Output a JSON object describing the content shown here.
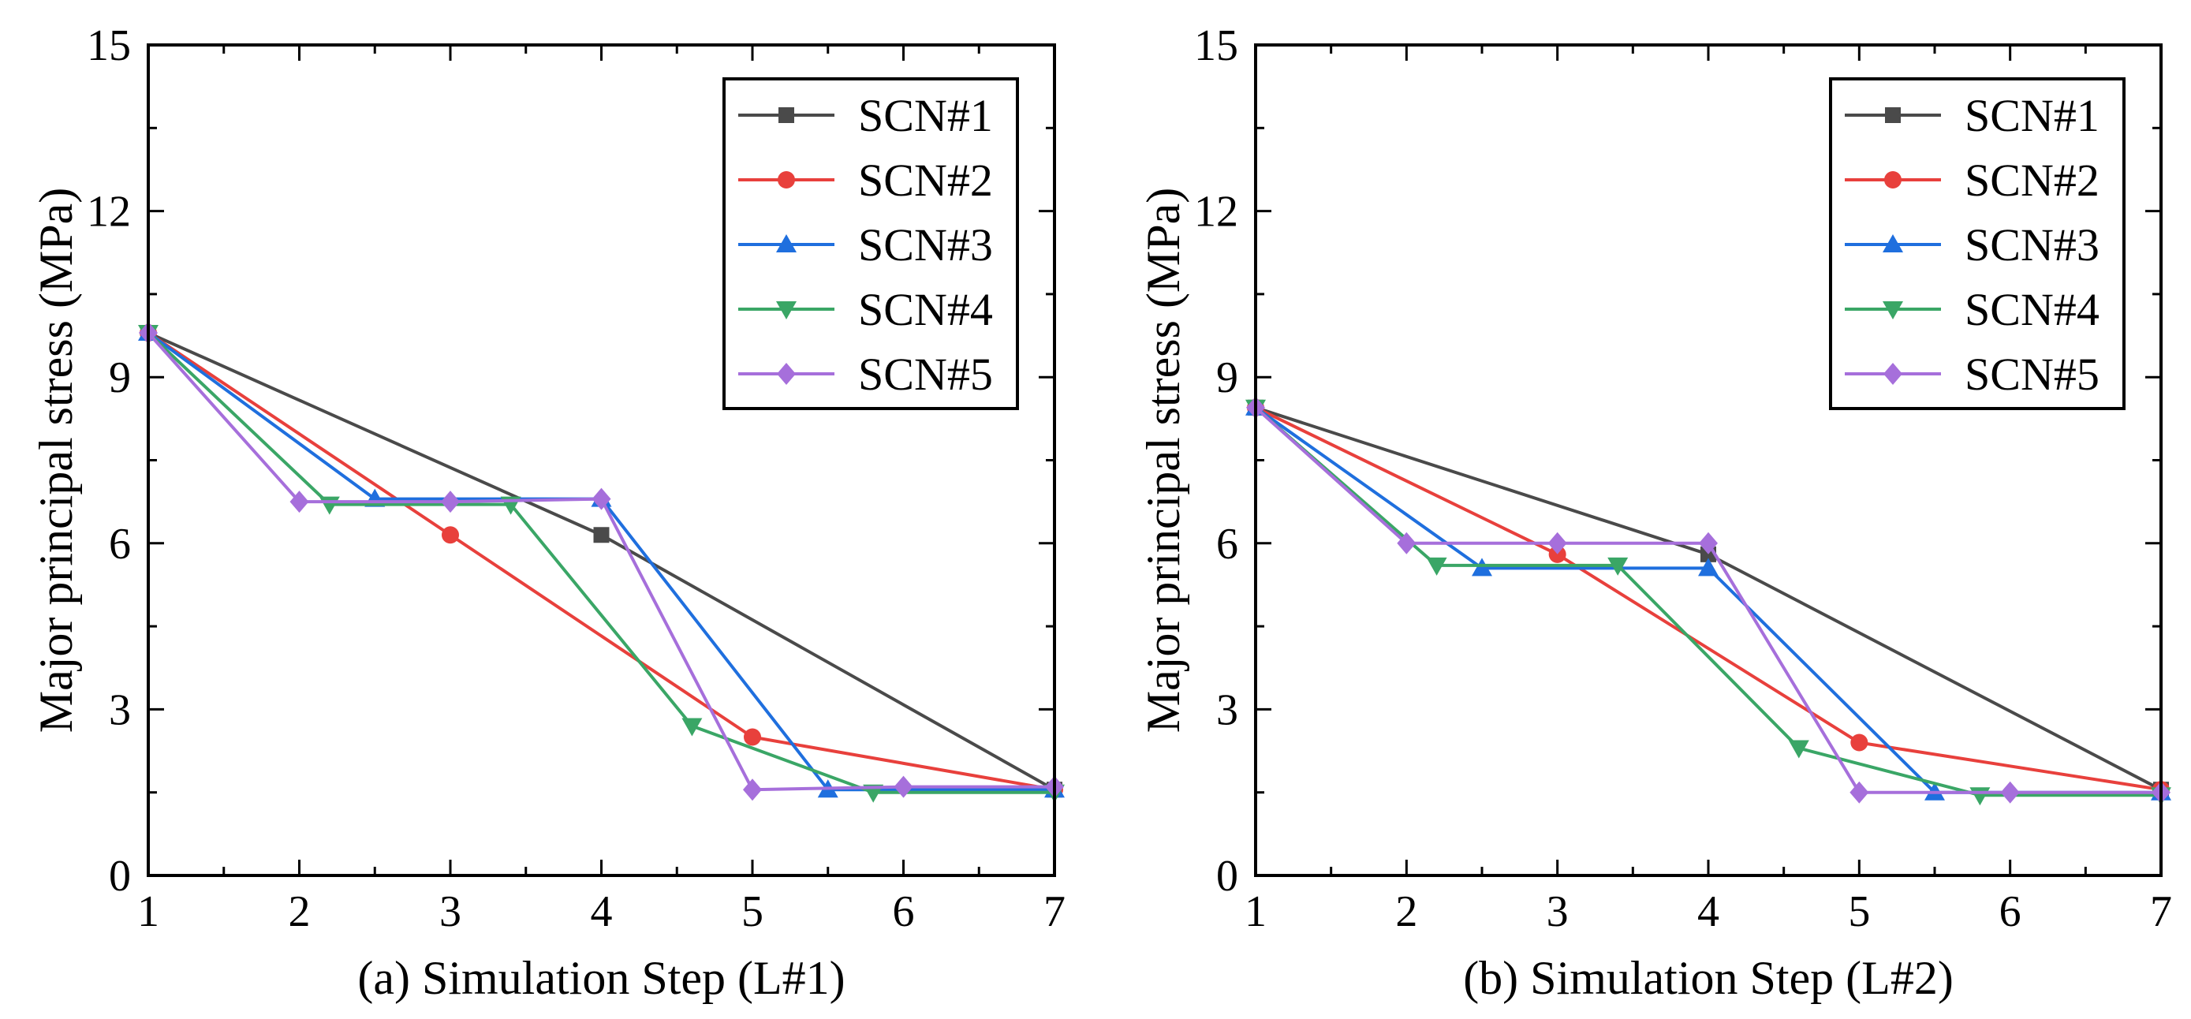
{
  "charts": [
    {
      "id": "a",
      "xlabel": "(a) Simulation Step (L#1)",
      "ylabel": "Major principal stress (MPa)",
      "xlim": [
        1,
        7
      ],
      "ylim": [
        0,
        15
      ],
      "xticks": [
        "1",
        "2",
        "3",
        "4",
        "5",
        "6",
        "7"
      ],
      "yticks": [
        "0",
        "3",
        "6",
        "9",
        "12",
        "15"
      ],
      "legend": [
        "SCN#1",
        "SCN#2",
        "SCN#3",
        "SCN#4",
        "SCN#5"
      ]
    },
    {
      "id": "b",
      "xlabel": "(b) Simulation Step (L#2)",
      "ylabel": "Major principal stress (MPa)",
      "xlim": [
        1,
        7
      ],
      "ylim": [
        0,
        15
      ],
      "xticks": [
        "1",
        "2",
        "3",
        "4",
        "5",
        "6",
        "7"
      ],
      "yticks": [
        "0",
        "3",
        "6",
        "9",
        "12",
        "15"
      ],
      "legend": [
        "SCN#1",
        "SCN#2",
        "SCN#3",
        "SCN#4",
        "SCN#5"
      ]
    }
  ],
  "chart_data": [
    {
      "type": "line",
      "xlabel": "(a) Simulation Step (L#1)",
      "ylabel": "Major principal stress (MPa)",
      "xlim": [
        1,
        7
      ],
      "ylim": [
        0,
        15
      ],
      "legend_position": "top-right",
      "series": [
        {
          "name": "SCN#1",
          "color": "#4a4a4a",
          "marker": "square",
          "x": [
            1,
            4,
            7
          ],
          "y": [
            9.8,
            6.15,
            1.55
          ]
        },
        {
          "name": "SCN#2",
          "color": "#e8403c",
          "marker": "circle",
          "x": [
            1,
            3,
            5,
            7
          ],
          "y": [
            9.8,
            6.15,
            2.5,
            1.55
          ]
        },
        {
          "name": "SCN#3",
          "color": "#1f6fde",
          "marker": "triangle-up",
          "x": [
            1,
            2.5,
            4,
            5.5,
            7
          ],
          "y": [
            9.8,
            6.8,
            6.8,
            1.55,
            1.55
          ]
        },
        {
          "name": "SCN#4",
          "color": "#3aa666",
          "marker": "triangle-down",
          "x": [
            1,
            2.2,
            3.4,
            4.6,
            5.8,
            7
          ],
          "y": [
            9.8,
            6.7,
            6.7,
            2.7,
            1.5,
            1.5
          ]
        },
        {
          "name": "SCN#5",
          "color": "#a66fdb",
          "marker": "diamond",
          "x": [
            1,
            2,
            3,
            4,
            5,
            6,
            7
          ],
          "y": [
            9.8,
            6.75,
            6.75,
            6.8,
            1.55,
            1.6,
            1.6
          ]
        }
      ]
    },
    {
      "type": "line",
      "xlabel": "(b) Simulation Step (L#2)",
      "ylabel": "Major principal stress (MPa)",
      "xlim": [
        1,
        7
      ],
      "ylim": [
        0,
        15
      ],
      "legend_position": "top-right",
      "series": [
        {
          "name": "SCN#1",
          "color": "#4a4a4a",
          "marker": "square",
          "x": [
            1,
            4,
            7
          ],
          "y": [
            8.45,
            5.8,
            1.55
          ]
        },
        {
          "name": "SCN#2",
          "color": "#e8403c",
          "marker": "circle",
          "x": [
            1,
            3,
            5,
            7
          ],
          "y": [
            8.45,
            5.8,
            2.4,
            1.55
          ]
        },
        {
          "name": "SCN#3",
          "color": "#1f6fde",
          "marker": "triangle-up",
          "x": [
            1,
            2.5,
            4,
            5.5,
            7
          ],
          "y": [
            8.45,
            5.55,
            5.55,
            1.5,
            1.5
          ]
        },
        {
          "name": "SCN#4",
          "color": "#3aa666",
          "marker": "triangle-down",
          "x": [
            1,
            2.2,
            3.4,
            4.6,
            5.8,
            7
          ],
          "y": [
            8.45,
            5.6,
            5.6,
            2.3,
            1.45,
            1.45
          ]
        },
        {
          "name": "SCN#5",
          "color": "#a66fdb",
          "marker": "diamond",
          "x": [
            1,
            2,
            3,
            4,
            5,
            6,
            7
          ],
          "y": [
            8.45,
            6.0,
            6.0,
            6.0,
            1.5,
            1.5,
            1.5
          ]
        }
      ]
    }
  ]
}
